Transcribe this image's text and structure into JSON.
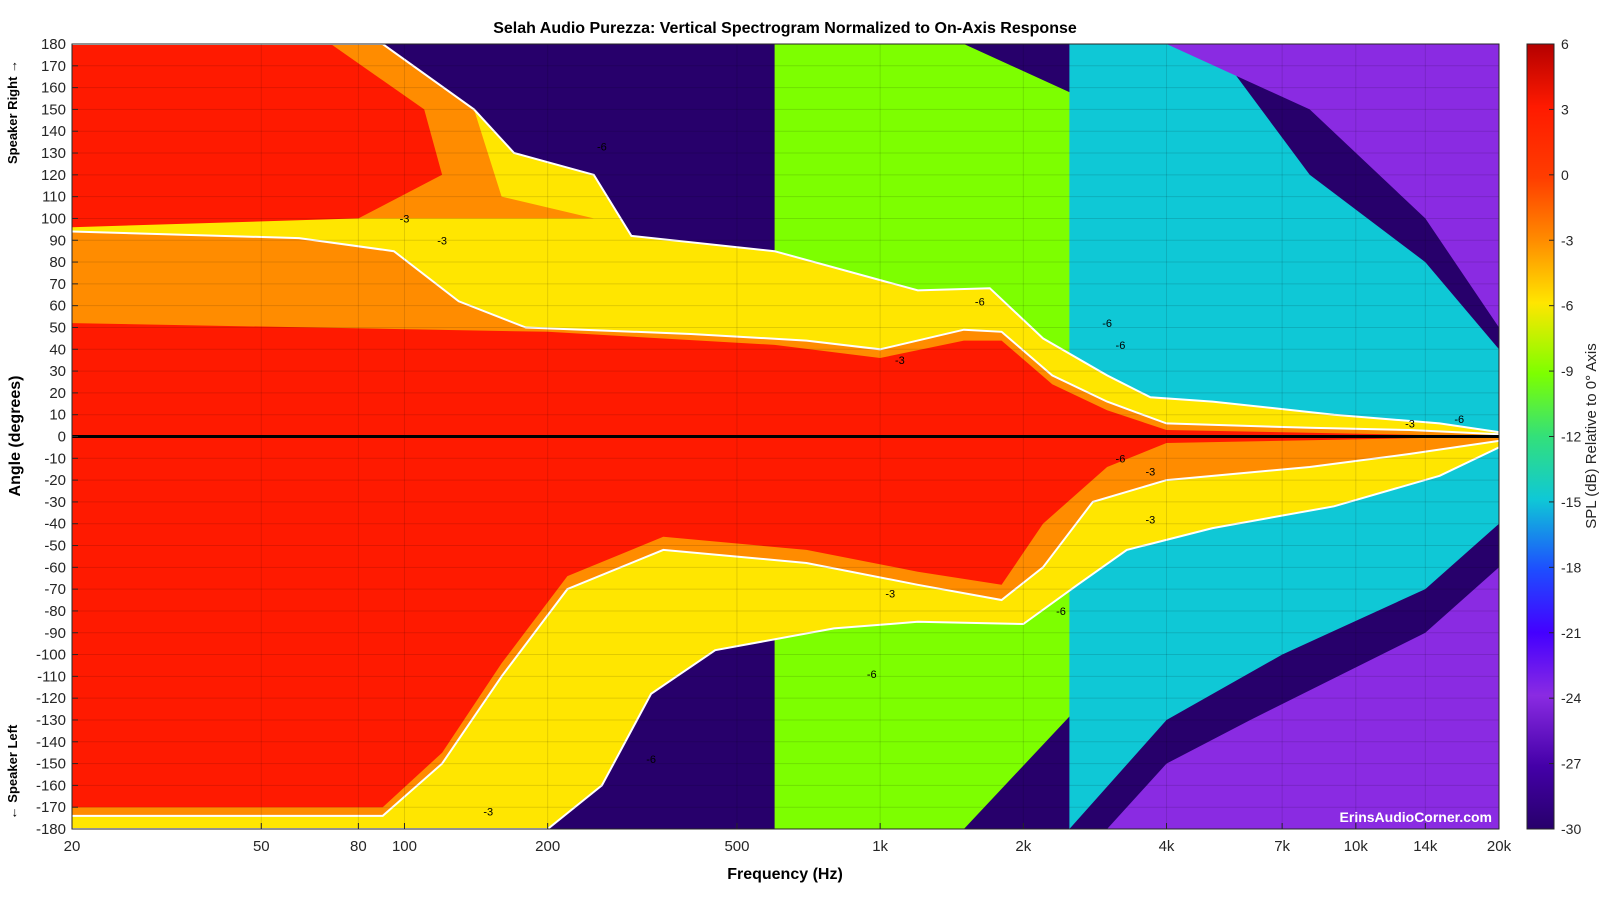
{
  "chart_data": {
    "type": "heatmap",
    "title": "Selah Audio Purezza: Vertical Spectrogram Normalized to On-Axis Response",
    "xlabel": "Frequency (Hz)",
    "ylabel": "Angle (degrees)",
    "y_top_label": "Speaker Right →",
    "y_bottom_label": "← Speaker Left",
    "colorbar_label": "SPL (dB) Relative to 0° Axis",
    "watermark": "ErinsAudioCorner.com",
    "x_scale": "log",
    "xlim": [
      20,
      20000
    ],
    "ylim": [
      -180,
      180
    ],
    "x_ticks": [
      {
        "value": 20,
        "label": "20"
      },
      {
        "value": 50,
        "label": "50"
      },
      {
        "value": 80,
        "label": "80"
      },
      {
        "value": 100,
        "label": "100"
      },
      {
        "value": 200,
        "label": "200"
      },
      {
        "value": 500,
        "label": "500"
      },
      {
        "value": 1000,
        "label": "1k"
      },
      {
        "value": 2000,
        "label": "2k"
      },
      {
        "value": 4000,
        "label": "4k"
      },
      {
        "value": 7000,
        "label": "7k"
      },
      {
        "value": 10000,
        "label": "10k"
      },
      {
        "value": 14000,
        "label": "14k"
      },
      {
        "value": 20000,
        "label": "20k"
      }
    ],
    "y_ticks": [
      180,
      170,
      160,
      150,
      140,
      130,
      120,
      110,
      100,
      90,
      80,
      70,
      60,
      50,
      40,
      30,
      20,
      10,
      0,
      -10,
      -20,
      -30,
      -40,
      -50,
      -60,
      -70,
      -80,
      -90,
      -100,
      -110,
      -120,
      -130,
      -140,
      -150,
      -160,
      -170,
      -180
    ],
    "colorbar_ticks": [
      6,
      3,
      0,
      -3,
      -6,
      -9,
      -12,
      -15,
      -18,
      -21,
      -24,
      -27,
      -30
    ],
    "color_range": [
      -30,
      6
    ],
    "colorscale": [
      "#27006b",
      "#4400a8",
      "#8a2be2",
      "#1e4dff",
      "#0fc8d6",
      "#33e07a",
      "#7dff00",
      "#d4f500",
      "#ffe600",
      "#ff8c00",
      "#ff1a00",
      "#d40000"
    ],
    "contour_levels": [
      -3,
      -6
    ],
    "contour_labels": [
      {
        "f": 100,
        "a": 100,
        "label": "-3"
      },
      {
        "f": 120,
        "a": 90,
        "label": "-3"
      },
      {
        "f": 260,
        "a": 133,
        "label": "-6"
      },
      {
        "f": 1100,
        "a": 35,
        "label": "-3"
      },
      {
        "f": 1620,
        "a": 62,
        "label": "-6"
      },
      {
        "f": 3000,
        "a": 52,
        "label": "-6"
      },
      {
        "f": 3200,
        "a": 42,
        "label": "-6"
      },
      {
        "f": 3200,
        "a": -10,
        "label": "-6"
      },
      {
        "f": 3700,
        "a": -16,
        "label": "-3"
      },
      {
        "f": 3700,
        "a": -38,
        "label": "-3"
      },
      {
        "f": 2400,
        "a": -80,
        "label": "-6"
      },
      {
        "f": 1050,
        "a": -72,
        "label": "-3"
      },
      {
        "f": 960,
        "a": -109,
        "label": "-6"
      },
      {
        "f": 330,
        "a": -148,
        "label": "-6"
      },
      {
        "f": 150,
        "a": -172,
        "label": "-3"
      },
      {
        "f": 13000,
        "a": 6,
        "label": "-3"
      },
      {
        "f": 16500,
        "a": 8,
        "label": "-6"
      }
    ],
    "approx_contours": {
      "minus3_upper": [
        [
          20,
          94
        ],
        [
          60,
          91
        ],
        [
          95,
          85
        ],
        [
          130,
          62
        ],
        [
          180,
          50
        ],
        [
          400,
          47
        ],
        [
          700,
          44
        ],
        [
          1000,
          40
        ],
        [
          1500,
          49
        ],
        [
          1800,
          48
        ],
        [
          2300,
          28
        ],
        [
          3000,
          16
        ],
        [
          4000,
          6
        ],
        [
          8000,
          4
        ],
        [
          13000,
          3
        ],
        [
          20000,
          1
        ]
      ],
      "minus6_upper": [
        [
          20,
          180
        ],
        [
          90,
          180
        ],
        [
          140,
          150
        ],
        [
          170,
          130
        ],
        [
          250,
          120
        ],
        [
          300,
          92
        ],
        [
          600,
          85
        ],
        [
          1200,
          67
        ],
        [
          1700,
          68
        ],
        [
          2200,
          45
        ],
        [
          3000,
          28
        ],
        [
          3700,
          18
        ],
        [
          5000,
          16
        ],
        [
          9000,
          10
        ],
        [
          15000,
          6
        ],
        [
          20000,
          2
        ]
      ],
      "minus3_lower": [
        [
          20,
          -174
        ],
        [
          90,
          -174
        ],
        [
          120,
          -150
        ],
        [
          160,
          -110
        ],
        [
          220,
          -70
        ],
        [
          350,
          -52
        ],
        [
          700,
          -58
        ],
        [
          1200,
          -68
        ],
        [
          1800,
          -75
        ],
        [
          2200,
          -60
        ],
        [
          2800,
          -30
        ],
        [
          4000,
          -20
        ],
        [
          8000,
          -14
        ],
        [
          13000,
          -8
        ],
        [
          20000,
          -2
        ]
      ],
      "minus6_lower": [
        [
          20,
          -180
        ],
        [
          200,
          -180
        ],
        [
          260,
          -160
        ],
        [
          330,
          -118
        ],
        [
          450,
          -98
        ],
        [
          800,
          -88
        ],
        [
          1200,
          -85
        ],
        [
          2000,
          -86
        ],
        [
          2600,
          -68
        ],
        [
          3300,
          -52
        ],
        [
          5000,
          -42
        ],
        [
          9000,
          -32
        ],
        [
          15000,
          -18
        ],
        [
          20000,
          -5
        ]
      ]
    }
  }
}
